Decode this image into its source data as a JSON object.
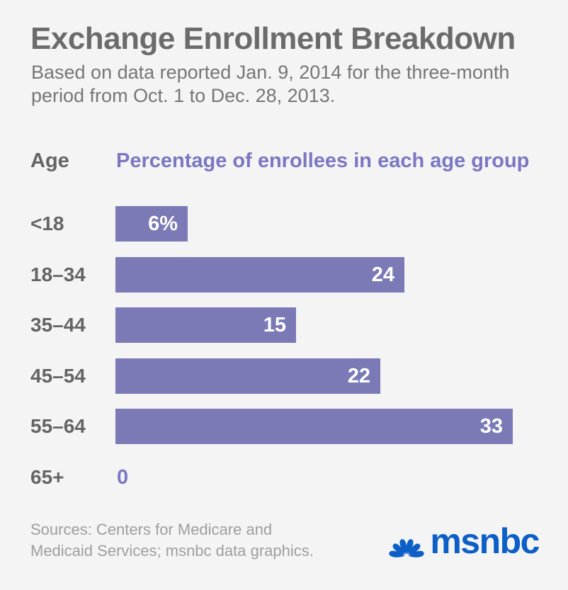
{
  "title": "Exchange Enrollment Breakdown",
  "subtitle_lines": [
    "Based on data reported Jan. 9, 2014 for the three-month",
    "period from Oct. 1 to Dec. 28, 2013."
  ],
  "table_header": {
    "age_label": "Age",
    "value_label": "Percentage of enrollees in each age group"
  },
  "chart_data": {
    "type": "bar",
    "orientation": "horizontal",
    "title": "Exchange Enrollment Breakdown",
    "categories": [
      "<18",
      "18–34",
      "35–44",
      "45–54",
      "55–64",
      "65+"
    ],
    "values": [
      6,
      24,
      15,
      22,
      33,
      0
    ],
    "value_labels": [
      "6%",
      "24",
      "15",
      "22",
      "33",
      "0"
    ],
    "xlabel": "Percentage of enrollees in each age group",
    "ylabel": "Age",
    "xlim": [
      0,
      33
    ],
    "grid": false,
    "legend": false,
    "bar_color": "#7b7ab6",
    "value_label_color": "#ffffff",
    "zero_label_color": "#7b77c2"
  },
  "footer": {
    "source_lines": [
      "Sources: Centers for Medicare and",
      "Medicaid Services; msnbc data graphics."
    ],
    "brand": "msnbc"
  },
  "colors": {
    "background": "#f4f4f4",
    "title": "#6b6b6b",
    "subtitle": "#767676",
    "age_text": "#646464",
    "accent_purple": "#7b77c2",
    "bar_purple": "#7b7ab6",
    "source_gray": "#9e9e9e",
    "brand_blue": "#0b5fc7"
  }
}
